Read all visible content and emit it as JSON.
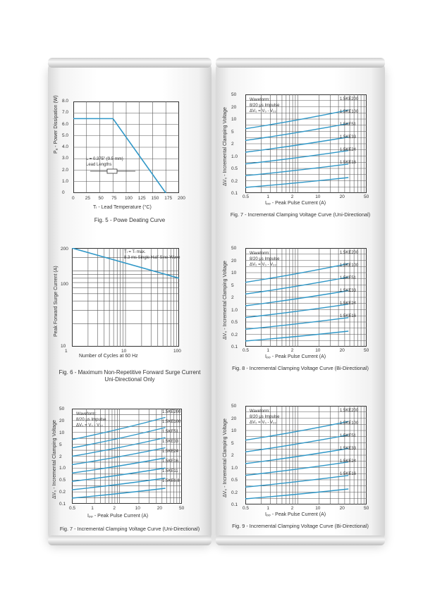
{
  "scene": {
    "background": "#ffffff",
    "accent_line_color": "#2f97c7",
    "grid_color": "#555555"
  },
  "left": {
    "fig1": {
      "caption": "Fig. 5 - Powe Deating Curve",
      "ylabel": "Pₐ - Power Dissipation (W)",
      "xlabel": "Tₗ - Lead Temperature (°C)",
      "x_ticks": [
        "0",
        "25",
        "50",
        "75",
        "100",
        "125",
        "150",
        "175",
        "200"
      ],
      "y_ticks": [
        "8.0",
        "7.0",
        "6.0",
        "5.0",
        "4.0",
        "3.0",
        "2.0",
        "1.0",
        "0"
      ],
      "inset": [
        "L = 0.375\" (9.5 mm)",
        "Lead Lengths"
      ],
      "chart_data": {
        "type": "line",
        "x": [
          0,
          75,
          175
        ],
        "series": [
          {
            "values": [
              6.5,
              6.5,
              0
            ]
          }
        ],
        "xlim": [
          0,
          200
        ],
        "ylim": [
          0,
          8
        ]
      }
    },
    "fig2": {
      "caption_line1": "Fig. 6 - Maximum Non-Repetitive Forward Surge Current",
      "caption_line2": "Uni-Directional Only",
      "ylabel": "Peak Forward Surge Current (A)",
      "xlabel": "Number of Cycles at 60 Hz",
      "x_ticks": [
        "1",
        "10",
        "100"
      ],
      "y_ticks": [
        "200",
        "100",
        "10"
      ],
      "note": [
        "Tₗ = Tₗ max.",
        "8.3 ms Single Half Sine-Wave"
      ],
      "chart_data": {
        "type": "line",
        "x": [
          1,
          100
        ],
        "series": [
          {
            "values": [
              200,
              80
            ]
          }
        ],
        "xscale": "log",
        "yscale": "log",
        "xlim": [
          1,
          100
        ],
        "ylim": [
          10,
          200
        ]
      }
    },
    "fig3": {
      "caption": "Fig. 7 - Incremental Clamping Voltage Curve (Uni-Directional)",
      "ylabel": "ΔV₀ - Incremental Clamping Voltage",
      "xlabel": "Iₚₚ - Peak Pulse Current (A)",
      "x_ticks": [
        "0.5",
        "1",
        "2",
        "10",
        "20",
        "50"
      ],
      "y_ticks": [
        "50",
        "20",
        "10",
        "5",
        "2",
        "1.0",
        "0.5",
        "0.2",
        "0.1"
      ],
      "note": [
        "Waveform:",
        "8/20 μs Impulse",
        "ΔV₀ = V₀ - V₂₂"
      ],
      "series_labels": [
        "1.5KE200",
        "1.5KE100",
        "1.5KE51",
        "1.5KE33",
        "1.5KE24",
        "1.5KE16",
        "1.5KE11",
        "1.5KE6.8"
      ]
    }
  },
  "right": {
    "fig4": {
      "caption": "Fig. 7 - Incremental Clamping Voltage Curve (Uni-Directional)",
      "ylabel": "ΔV₀ - Incremental Clamping Voltage",
      "xlabel": "Iₚₚ - Peak Pulse Current (A)",
      "x_ticks": [
        "0.5",
        "1",
        "2",
        "10",
        "20",
        "50"
      ],
      "y_ticks": [
        "50",
        "20",
        "10",
        "5",
        "2",
        "1.0",
        "0.5",
        "0.2",
        "0.1"
      ],
      "note": [
        "Waveform:",
        "8/20 μs Impulse",
        "ΔV₀ = V₀ - V₂₂"
      ],
      "series_labels": [
        "1.5KE200",
        "1.5KE100",
        "1.5KE51",
        "1.5KE33",
        "1.5KE24",
        "1.5KE16"
      ]
    },
    "fig5": {
      "caption": "Fig. 8 - Incremental Clamping Voltage Curve (Bi-Directional)",
      "ylabel": "ΔV₀ - Incremental Clamping Voltage",
      "xlabel": "Iₚₚ - Peak Pulse Current (A)",
      "x_ticks": [
        "0.5",
        "1",
        "2",
        "10",
        "20",
        "50"
      ],
      "y_ticks": [
        "50",
        "20",
        "10",
        "5",
        "2",
        "1.0",
        "0.5",
        "0.2",
        "0.1"
      ],
      "note": [
        "Waveform:",
        "8/20 μs Impulse",
        "ΔV₀ = V₀ - V₂₂"
      ],
      "series_labels": [
        "1.5KE200",
        "1.5KE100",
        "1.5KE51",
        "1.5KE33",
        "1.5KE24",
        "1.5KE16"
      ]
    },
    "fig6": {
      "caption": "Fig. 9 - Incremental Clamping Voltage Curve (Bi-Directional)",
      "ylabel": "ΔV₀ - Incremental Clamping Voltage",
      "xlabel": "Iₚₚ - Peak Pulse Current (A)",
      "x_ticks": [
        "0.5",
        "1",
        "2",
        "10",
        "20",
        "50"
      ],
      "y_ticks": [
        "50",
        "20",
        "10",
        "5",
        "2",
        "1.0",
        "0.5",
        "0.2",
        "0.1"
      ],
      "note": [
        "Waveform:",
        "8/20 μs Impulse",
        "ΔV₀ = V₀ - V₂₂"
      ],
      "series_labels": [
        "1.5KE200",
        "1.5KE100",
        "1.5KE51",
        "1.5KE33",
        "1.5KE24",
        "1.5KE16"
      ]
    }
  }
}
